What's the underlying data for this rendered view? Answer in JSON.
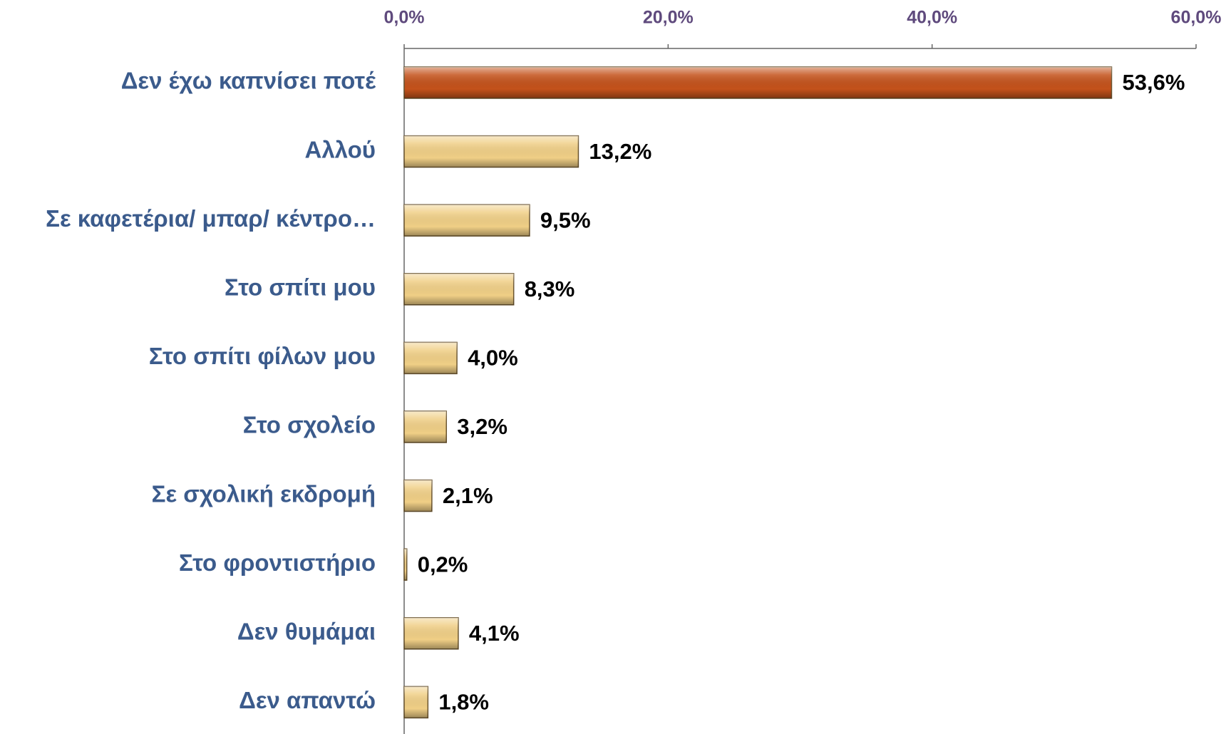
{
  "chart_data": {
    "type": "barh",
    "categories": [
      "Δεν έχω καπνίσει ποτέ",
      "Αλλού",
      "Σε καφετέρια/ μπαρ/ κέντρο…",
      "Στο σπίτι μου",
      "Στο σπίτι φίλων μου",
      "Στο σχολείο",
      "Σε σχολική εκδρομή",
      "Στο φροντιστήριο",
      "Δεν θυμάμαι",
      "Δεν απαντώ"
    ],
    "values": [
      53.6,
      13.2,
      9.5,
      8.3,
      4.0,
      3.2,
      2.1,
      0.2,
      4.1,
      1.8
    ],
    "value_labels": [
      "53,6%",
      "13,2%",
      "9,5%",
      "8,3%",
      "4,0%",
      "3,2%",
      "2,1%",
      "0,2%",
      "4,1%",
      "1,8%"
    ],
    "colors": [
      "#c4521b",
      "#f0cf86",
      "#f0cf86",
      "#f0cf86",
      "#f0cf86",
      "#f0cf86",
      "#f0cf86",
      "#f0cf86",
      "#f0cf86",
      "#f0cf86"
    ],
    "xlim": [
      0,
      60
    ],
    "xticks": [
      {
        "value": 0,
        "label": "0,0%"
      },
      {
        "value": 20,
        "label": "20,0%"
      },
      {
        "value": 40,
        "label": "40,0%"
      },
      {
        "value": 60,
        "label": "60,0%"
      }
    ],
    "axis_position": "top"
  }
}
